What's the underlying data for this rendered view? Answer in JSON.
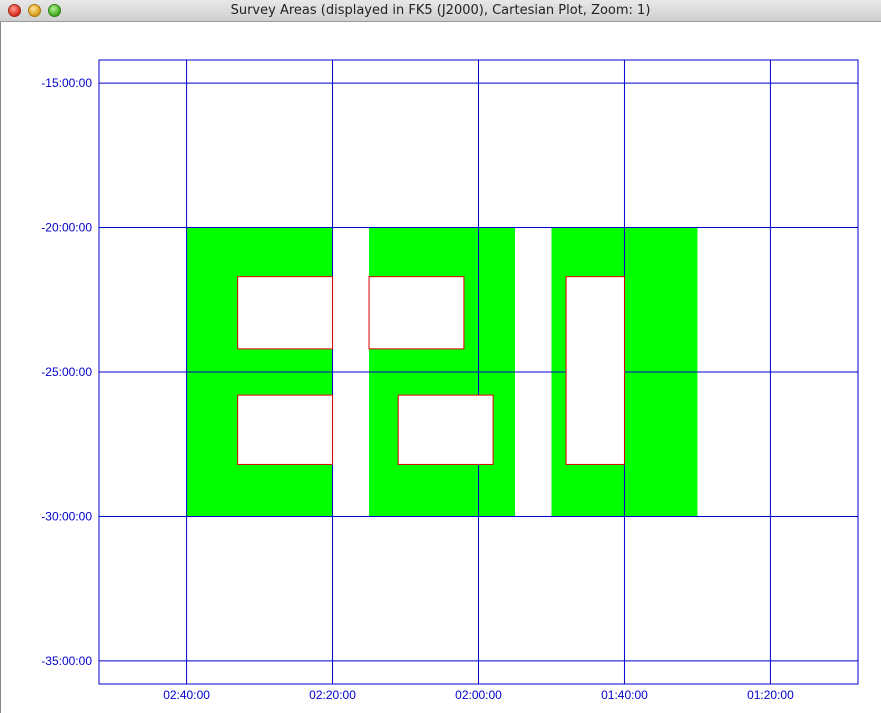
{
  "window": {
    "title": "Survey Areas (displayed in FK5 (J2000), Cartesian Plot, Zoom: 1)"
  },
  "plot": {
    "y_tick_labels": [
      "-15:00:00",
      "-20:00:00",
      "-25:00:00",
      "-30:00:00",
      "-35:00:00"
    ],
    "x_tick_labels": [
      "02:40:00",
      "02:20:00",
      "02:00:00",
      "01:40:00",
      "01:20:00"
    ],
    "colors": {
      "grid": "#0000cc",
      "survey_fill": "#00ff00",
      "hole_border": "#e00000",
      "hole_fill": "#ffffff"
    }
  },
  "chart_data": {
    "type": "other",
    "coordinate_system": "FK5 (J2000)",
    "x_axis": "RA (hh:mm:ss), decreasing to the right",
    "y_axis": "Dec (dd:mm:ss)",
    "xlim_minutes_ra": [
      172,
      68
    ],
    "ylim_deg_dec": [
      -35.8,
      -14.2
    ],
    "areas": [
      {
        "ra_min": [
          140,
          160
        ],
        "dec": [
          -30,
          -20
        ]
      },
      {
        "ra_min": [
          115,
          135
        ],
        "dec": [
          -30,
          -20
        ]
      },
      {
        "ra_min": [
          90,
          110
        ],
        "dec": [
          -30,
          -20
        ]
      }
    ],
    "holes": [
      {
        "ra_min": [
          140,
          153
        ],
        "dec": [
          -24.2,
          -21.7
        ]
      },
      {
        "ra_min": [
          140,
          153
        ],
        "dec": [
          -28.2,
          -25.8
        ]
      },
      {
        "ra_min": [
          122,
          135
        ],
        "dec": [
          -24.2,
          -21.7
        ]
      },
      {
        "ra_min": [
          118,
          131
        ],
        "dec": [
          -28.2,
          -25.8
        ]
      },
      {
        "ra_min": [
          100,
          108
        ],
        "dec": [
          -28.2,
          -21.7
        ]
      }
    ]
  }
}
